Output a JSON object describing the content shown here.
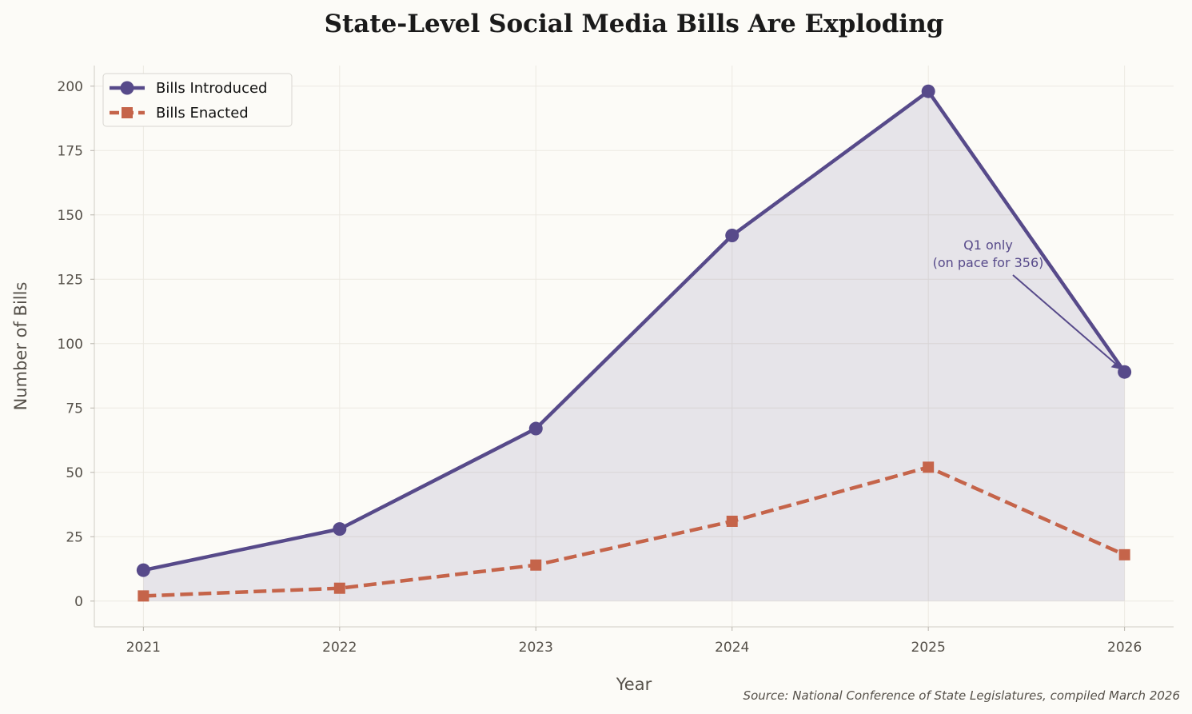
{
  "chart_data": {
    "type": "line",
    "title": "State-Level Social Media Bills Are Exploding",
    "xlabel": "Year",
    "ylabel": "Number of Bills",
    "x": [
      2021,
      2022,
      2023,
      2024,
      2025,
      2026
    ],
    "xlim": [
      2020.75,
      2026.25
    ],
    "ylim": [
      -10,
      208
    ],
    "yticks": [
      0,
      25,
      50,
      75,
      100,
      125,
      150,
      175,
      200
    ],
    "grid": true,
    "legend": "top-left",
    "series": [
      {
        "name": "Bills Introduced",
        "values": [
          12,
          28,
          67,
          142,
          198,
          89
        ],
        "color": "#574a8a",
        "style": "solid",
        "marker": "circle",
        "fill": true
      },
      {
        "name": "Bills Enacted",
        "values": [
          2,
          5,
          14,
          31,
          52,
          18
        ],
        "color": "#c5644a",
        "style": "dashed",
        "marker": "square"
      }
    ],
    "annotation": {
      "lines": [
        "Q1 only",
        "(on pace for 356)"
      ],
      "x": 2026,
      "y": 89
    },
    "source": "Source: National Conference of State Legislatures, compiled March 2026"
  }
}
